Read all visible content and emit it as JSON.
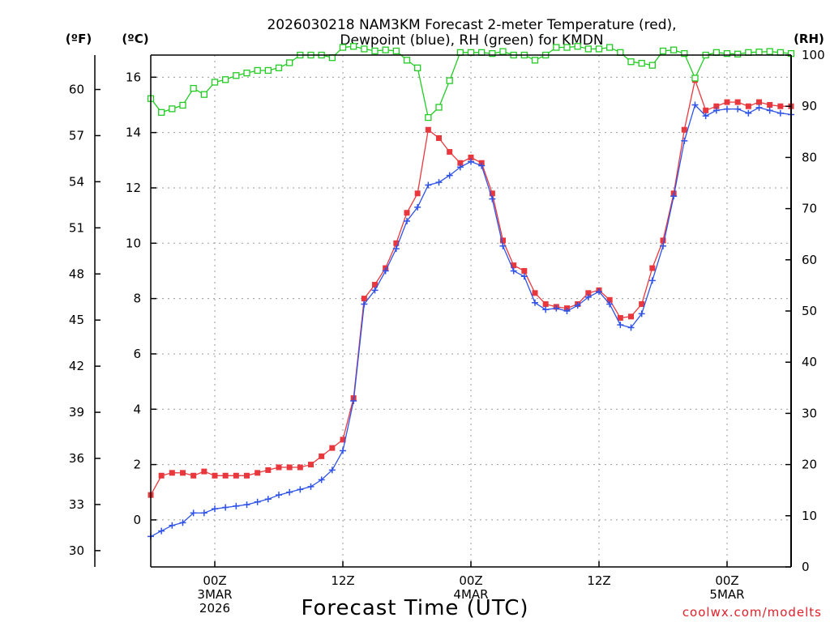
{
  "chart_data": {
    "type": "line",
    "title_line1": "2026030218 NAM3KM Forecast 2-meter Temperature (red),",
    "title_line2": "Dewpoint (blue), RH (green) for KMDN",
    "xlabel": "Forecast Time (UTC)",
    "credit": "coolwx.com/modelts",
    "units": {
      "fahrenheit": "(ºF)",
      "celsius": "(ºC)",
      "rh": "(RH)"
    },
    "ylim_celsius": [
      -1.7,
      16.8
    ],
    "ylim_rh": [
      0,
      100
    ],
    "yticks_celsius": [
      "0",
      "2",
      "4",
      "6",
      "8",
      "10",
      "12",
      "14",
      "16"
    ],
    "yticks_fahrenheit": [
      "30",
      "33",
      "36",
      "39",
      "42",
      "45",
      "48",
      "51",
      "54",
      "57",
      "60"
    ],
    "yticks_rh": [
      "0",
      "10",
      "20",
      "30",
      "40",
      "50",
      "60",
      "70",
      "80",
      "90",
      "100"
    ],
    "x_hours_range": [
      18,
      78
    ],
    "xticks": [
      {
        "hour": 24,
        "lines": [
          "00Z",
          "3MAR",
          "2026"
        ]
      },
      {
        "hour": 36,
        "lines": [
          "12Z"
        ]
      },
      {
        "hour": 48,
        "lines": [
          "00Z",
          "4MAR"
        ]
      },
      {
        "hour": 60,
        "lines": [
          "12Z"
        ]
      },
      {
        "hour": 72,
        "lines": [
          "00Z",
          "5MAR"
        ]
      }
    ],
    "hours": [
      18,
      19,
      20,
      21,
      22,
      23,
      24,
      25,
      26,
      27,
      28,
      29,
      30,
      31,
      32,
      33,
      34,
      35,
      36,
      37,
      38,
      39,
      40,
      41,
      42,
      43,
      44,
      45,
      46,
      47,
      48,
      49,
      50,
      51,
      52,
      53,
      54,
      55,
      56,
      57,
      58,
      59,
      60,
      61,
      62,
      63,
      64,
      65,
      66,
      67,
      68,
      69,
      70,
      71,
      72,
      73,
      74,
      75,
      76,
      77,
      78
    ],
    "series": [
      {
        "name": "2-meter Temperature",
        "unit": "C",
        "color": "#e8383d",
        "marker": "filled-square",
        "values": [
          0.9,
          1.6,
          1.7,
          1.7,
          1.6,
          1.75,
          1.6,
          1.6,
          1.6,
          1.6,
          1.7,
          1.8,
          1.9,
          1.9,
          1.9,
          2.0,
          2.3,
          2.6,
          2.9,
          4.4,
          8.0,
          8.5,
          9.1,
          10.0,
          11.1,
          11.8,
          14.1,
          13.8,
          13.3,
          12.9,
          13.1,
          12.9,
          11.8,
          10.1,
          9.2,
          9.0,
          8.2,
          7.8,
          7.7,
          7.65,
          7.8,
          8.2,
          8.3,
          7.95,
          7.3,
          7.35,
          7.8,
          9.1,
          10.1,
          11.8,
          14.1,
          15.9,
          14.8,
          14.95,
          15.1,
          15.1,
          14.95,
          15.1,
          15.0,
          14.95,
          14.95
        ]
      },
      {
        "name": "Dewpoint",
        "unit": "C",
        "color": "#2f52e8",
        "marker": "plus",
        "values": [
          -0.6,
          -0.4,
          -0.2,
          -0.1,
          0.25,
          0.25,
          0.4,
          0.45,
          0.5,
          0.55,
          0.65,
          0.75,
          0.9,
          1.0,
          1.1,
          1.2,
          1.45,
          1.8,
          2.5,
          4.3,
          7.8,
          8.3,
          9.0,
          9.8,
          10.8,
          11.3,
          12.1,
          12.2,
          12.45,
          12.75,
          12.95,
          12.8,
          11.6,
          9.9,
          9.0,
          8.8,
          7.85,
          7.6,
          7.65,
          7.55,
          7.75,
          8.05,
          8.25,
          7.8,
          7.05,
          6.95,
          7.45,
          8.65,
          9.9,
          11.7,
          13.7,
          15.0,
          14.6,
          14.8,
          14.85,
          14.85,
          14.7,
          14.9,
          14.8,
          14.7,
          14.65
        ]
      },
      {
        "name": "RH",
        "unit": "%",
        "color": "#22cc22",
        "marker": "open-square",
        "values": [
          91.5,
          88.8,
          89.5,
          90.2,
          93.5,
          92.3,
          94.7,
          95.2,
          96.0,
          96.5,
          97.0,
          97.0,
          97.5,
          98.5,
          100.0,
          100.0,
          100.0,
          99.5,
          101.5,
          101.7,
          101.2,
          100.8,
          101.0,
          100.8,
          99.0,
          97.5,
          87.8,
          89.8,
          95.0,
          100.5,
          100.5,
          100.5,
          100.3,
          100.7,
          100.0,
          100.0,
          99.0,
          100.0,
          101.5,
          101.5,
          101.7,
          101.2,
          101.2,
          101.5,
          100.5,
          98.7,
          98.4,
          98.0,
          100.8,
          101.0,
          100.3,
          95.5,
          100.0,
          100.5,
          100.3,
          100.2,
          100.5,
          100.6,
          100.7,
          100.5,
          100.3
        ]
      }
    ],
    "grid": true,
    "legend": "none (series identified in title)"
  }
}
